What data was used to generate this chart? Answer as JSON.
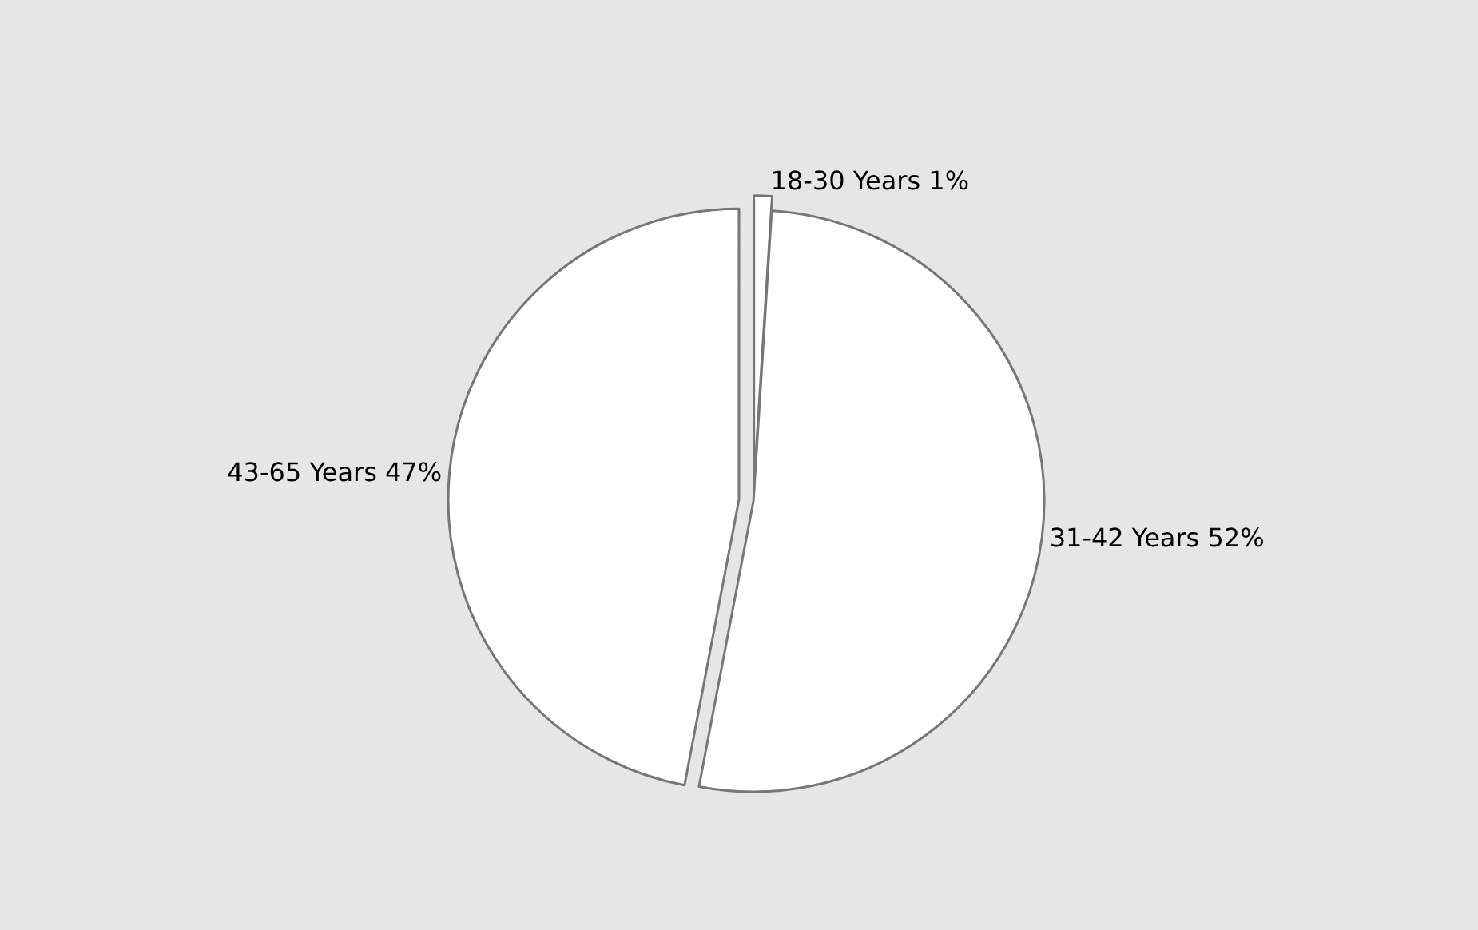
{
  "chart_data": {
    "type": "pie",
    "categories": [
      "18-30 Years",
      "31-42 Years",
      "43-65 Years"
    ],
    "values": [
      1,
      52,
      47
    ],
    "value_labels": [
      "1%",
      "52%",
      "47%"
    ],
    "colors": [
      "#ffffff",
      "#ffffff",
      "#ffffff"
    ],
    "legend": false
  }
}
